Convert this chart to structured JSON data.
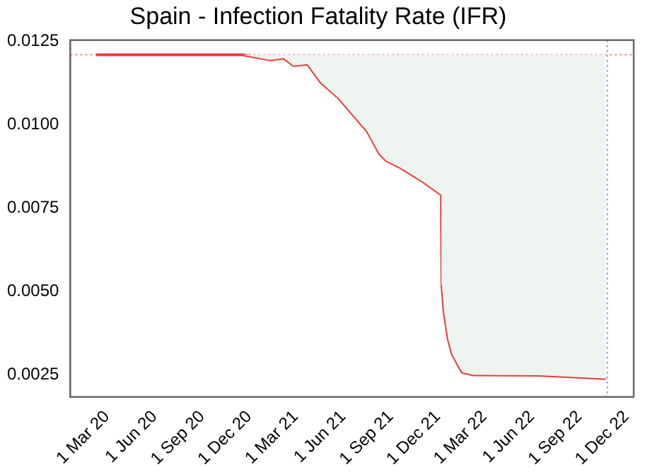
{
  "chart_data": {
    "type": "line",
    "title": "Spain - Infection Fatality Rate (IFR)",
    "x": [
      "2020-02-09",
      "2020-11-18",
      "2021-01-10",
      "2021-02-06",
      "2021-02-25",
      "2021-03-24",
      "2021-04-19",
      "2021-05-24",
      "2021-06-20",
      "2021-07-17",
      "2021-08-10",
      "2021-08-23",
      "2021-09-19",
      "2021-11-01",
      "2021-12-08",
      "2021-12-09",
      "2021-12-13",
      "2021-12-21",
      "2021-12-29",
      "2022-01-17",
      "2022-02-08",
      "2022-06-13",
      "2022-10-22"
    ],
    "series": [
      {
        "color": "#ee3b3b",
        "values": [
          0.0121,
          0.0121,
          0.01195,
          0.012,
          0.01178,
          0.01182,
          0.01127,
          0.01079,
          0.0103,
          0.00982,
          0.00914,
          0.00893,
          0.00872,
          0.00831,
          0.0079,
          0.0052,
          0.00441,
          0.00358,
          0.00312,
          0.00258,
          0.0025,
          0.00249,
          0.00239
        ],
        "lower": [
          0.0121,
          0.0121,
          0.01195,
          0.012,
          0.01178,
          0.01182,
          0.01127,
          0.01079,
          0.0103,
          0.00982,
          0.00914,
          0.00893,
          0.00872,
          0.00831,
          0.0079,
          0.0052,
          0.00441,
          0.00358,
          0.00312,
          0.00258,
          0.0025,
          0.00249,
          0.00239
        ],
        "upper": [
          0.0121,
          0.0121,
          0.0121,
          0.0121,
          0.0121,
          0.0121,
          0.0121,
          0.0121,
          0.0121,
          0.0121,
          0.0121,
          0.0121,
          0.0121,
          0.0121,
          0.0121,
          0.0121,
          0.0121,
          0.0121,
          0.0121,
          0.0121,
          0.0121,
          0.0121,
          0.0121
        ]
      }
    ],
    "xlim": [
      "2019-12-21",
      "2022-12-15"
    ],
    "xticks": [
      {
        "value": "2020-03-01",
        "label": "1 Mar 20"
      },
      {
        "value": "2020-06-01",
        "label": "1 Jun 20"
      },
      {
        "value": "2020-09-01",
        "label": "1 Sep 20"
      },
      {
        "value": "2020-12-01",
        "label": "1 Dec 20"
      },
      {
        "value": "2021-03-01",
        "label": "1 Mar 21"
      },
      {
        "value": "2021-06-01",
        "label": "1 Jun 21"
      },
      {
        "value": "2021-09-01",
        "label": "1 Sep 21"
      },
      {
        "value": "2021-12-01",
        "label": "1 Dec 21"
      },
      {
        "value": "2022-03-01",
        "label": "1 Mar 22"
      },
      {
        "value": "2022-06-01",
        "label": "1 Jun 22"
      },
      {
        "value": "2022-09-01",
        "label": "1 Sep 22"
      },
      {
        "value": "2022-12-01",
        "label": "1 Dec 22"
      }
    ],
    "ylim": [
      0.00184,
      0.01254
    ],
    "yticks": [
      0.0025,
      {
        "value": 0.005,
        "label": "0.0050"
      },
      0.0075,
      {
        "value": 0.01,
        "label": "0.0100"
      },
      0.0125
    ],
    "ref_lines": [
      {
        "axis": "y",
        "value": 0.0121,
        "color": "#f08a8a",
        "line_style": "dotted"
      },
      {
        "axis": "x",
        "value": "2022-10-25",
        "color": "#9a9ae8",
        "line_style": "dotted"
      }
    ],
    "grid": false,
    "legend": false,
    "marker": "none",
    "line_style": "solid"
  }
}
